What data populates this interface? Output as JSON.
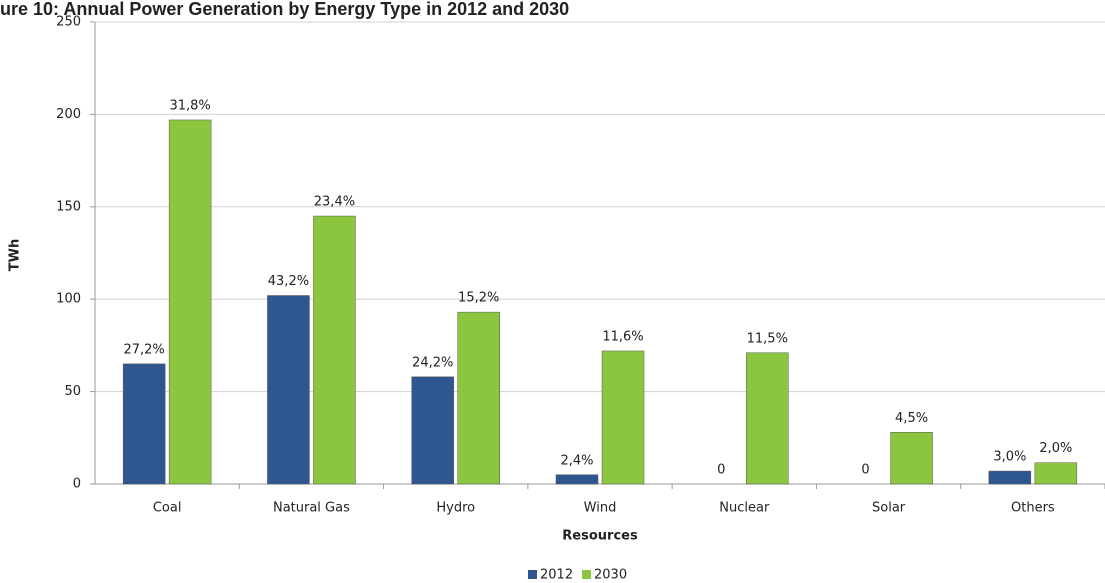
{
  "chart_data": {
    "type": "bar",
    "title": "ure 10: Annual Power Generation by Energy Type in 2012 and 2030",
    "x_label": "Resources",
    "y_label": "TWh",
    "categories": [
      "Coal",
      "Natural Gas",
      "Hydro",
      "Wind",
      "Nuclear",
      "Solar",
      "Others"
    ],
    "series": [
      {
        "name": "2012",
        "color": "#2e5690",
        "values": [
          65,
          102,
          58,
          5,
          0,
          0,
          7
        ],
        "labels": [
          "27,2%",
          "43,2%",
          "24,2%",
          "2,4%",
          "0",
          "0",
          "3,0%"
        ]
      },
      {
        "name": "2030",
        "color": "#8cc63f",
        "values": [
          197,
          145,
          93,
          72,
          71,
          28,
          11.5
        ],
        "labels": [
          "31,8%",
          "23,4%",
          "15,2%",
          "11,6%",
          "11,5%",
          "4,5%",
          "2,0%"
        ]
      }
    ],
    "ylim": [
      0,
      250
    ],
    "yticks": [
      0,
      50,
      100,
      150,
      200,
      250
    ],
    "grid": true,
    "legend": "bottom"
  }
}
